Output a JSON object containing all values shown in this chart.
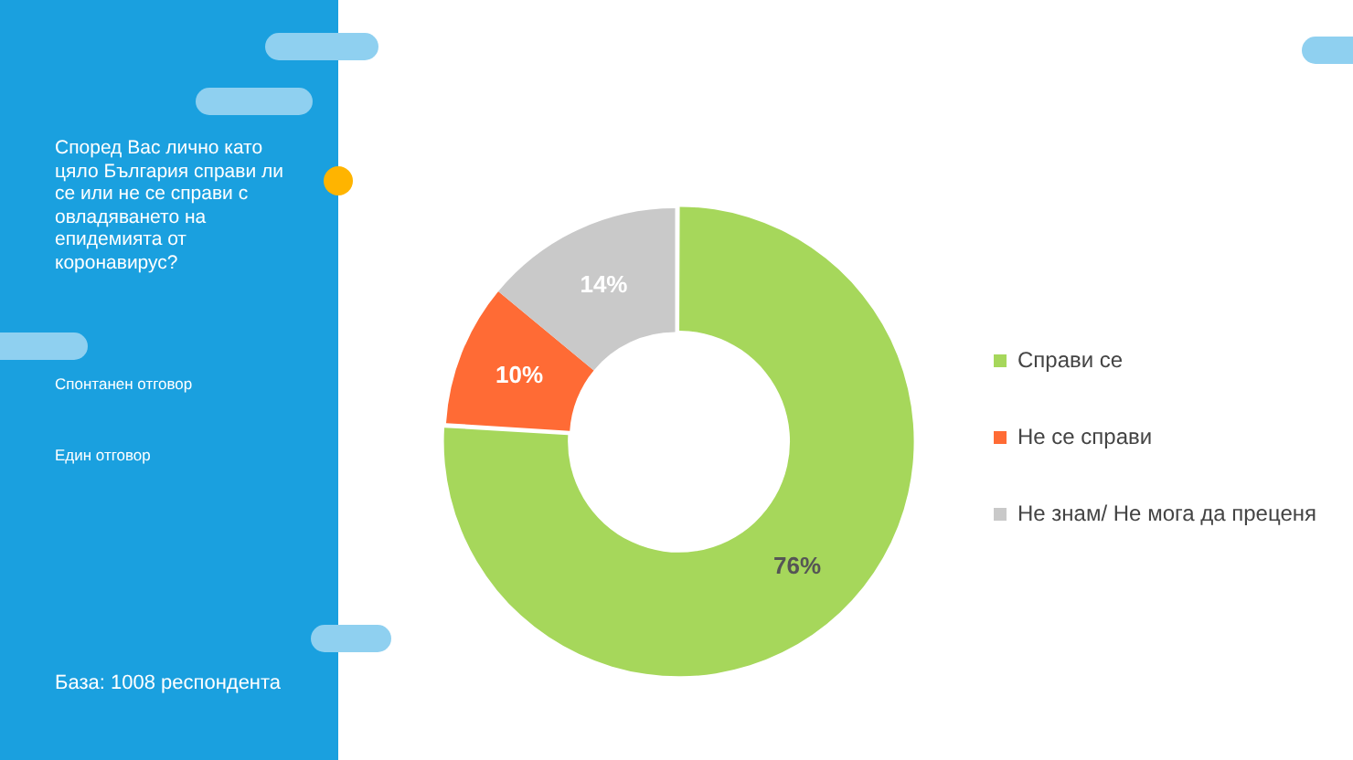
{
  "chart_data": {
    "type": "donut",
    "title": "Според Вас лично като цяло България справи ли се или не се справи с овладяването на епидемията от коронавирус?",
    "categories": [
      "Справи се",
      "Не се справи",
      "Не знам/ Не мога да преценя"
    ],
    "values": [
      76,
      10,
      14
    ],
    "value_labels": [
      "76%",
      "10%",
      "14%"
    ],
    "colors": [
      "#a6d75b",
      "#ff6b35",
      "#c9c9c9"
    ],
    "legend": "right",
    "annotations": [
      "Спонтанен отговор",
      "Един отговор",
      "База: 1008 респондента"
    ]
  }
}
